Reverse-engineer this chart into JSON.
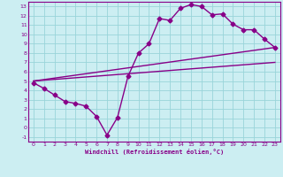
{
  "xlabel": "Windchill (Refroidissement éolien,°C)",
  "xlim": [
    -0.5,
    23.5
  ],
  "ylim": [
    -1.5,
    13.5
  ],
  "xticks": [
    0,
    1,
    2,
    3,
    4,
    5,
    6,
    7,
    8,
    9,
    10,
    11,
    12,
    13,
    14,
    15,
    16,
    17,
    18,
    19,
    20,
    21,
    22,
    23
  ],
  "yticks": [
    -1,
    0,
    1,
    2,
    3,
    4,
    5,
    6,
    7,
    8,
    9,
    10,
    11,
    12,
    13
  ],
  "bg_color": "#cceef2",
  "grid_color": "#99d4da",
  "line_color": "#880088",
  "line1_x": [
    0,
    1,
    2,
    3,
    4,
    5,
    6,
    7,
    8,
    9,
    10,
    11,
    12,
    13,
    14,
    15,
    16,
    17,
    18,
    19,
    20,
    21,
    22,
    23
  ],
  "line1_y": [
    4.8,
    4.2,
    3.5,
    2.8,
    2.6,
    2.3,
    1.2,
    -0.8,
    1.1,
    5.5,
    8.0,
    9.0,
    11.7,
    11.5,
    12.8,
    13.2,
    13.0,
    12.1,
    12.2,
    11.1,
    10.5,
    10.5,
    9.5,
    8.6
  ],
  "line2_x": [
    0,
    23
  ],
  "line2_y": [
    5.0,
    8.6
  ],
  "line3_x": [
    0,
    23
  ],
  "line3_y": [
    5.0,
    7.0
  ],
  "markersize": 2.5,
  "linewidth": 1.0
}
